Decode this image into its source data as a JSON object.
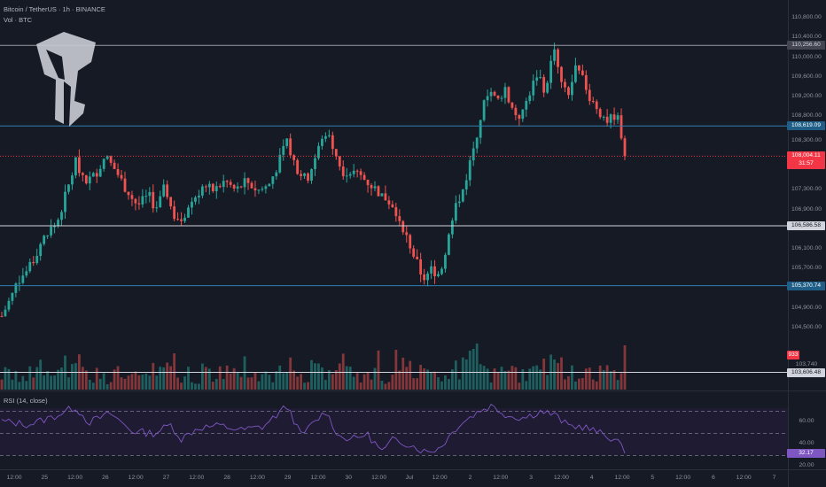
{
  "header": {
    "symbol_line": "Bitcoin / TetherUS · 1h · BINANCE",
    "volume_line": "Vol · BTC",
    "rsi_label": "RSI (14, close)"
  },
  "price_axis": {
    "ticks": [
      "110,800.00",
      "110,400.00",
      "110,000.00",
      "109,600.00",
      "109,200.00",
      "108,800.00",
      "108,300.00",
      "107,300.00",
      "106,900.00",
      "106,100.00",
      "105,700.00",
      "104,900.00",
      "104,500.00",
      "103,740"
    ]
  },
  "levels": [
    {
      "price": 110256.6,
      "label": "110,256.60",
      "color": "#9598a1",
      "label_bg": "#434651",
      "label_fg": "#d1d4dc"
    },
    {
      "price": 108619.09,
      "label": "108,619.09",
      "color": "#2f7fb0",
      "label_bg": "#1f5f87",
      "label_fg": "#ffffff"
    },
    {
      "price": 106586.58,
      "label": "106,586.58",
      "color": "#d1d4dc",
      "label_bg": "#d1d4dc",
      "label_fg": "#131722"
    },
    {
      "price": 105370.74,
      "label": "105,370.74",
      "color": "#2f7fb0",
      "label_bg": "#1f5f87",
      "label_fg": "#ffffff"
    },
    {
      "price": 103606.48,
      "label": "103,606.48",
      "color": "#d1d4dc",
      "label_bg": "#d1d4dc",
      "label_fg": "#131722"
    }
  ],
  "current_price": {
    "price": 108004.11,
    "label": "108,004.11",
    "countdown": "31:57",
    "color": "#f23645"
  },
  "volume_badge": {
    "label": "933",
    "color": "#f23645"
  },
  "rsi": {
    "ticks": [
      "60.00",
      "40.00",
      "20.00"
    ],
    "value_label": "32.17",
    "upper": 70,
    "lower": 30,
    "mid": 50,
    "line_color": "#7e57c2"
  },
  "time_axis": {
    "ticks": [
      "12:00",
      "25",
      "12:00",
      "26",
      "12:00",
      "27",
      "12:00",
      "28",
      "12:00",
      "29",
      "12:00",
      "30",
      "12:00",
      "Jul",
      "12:00",
      "2",
      "12:00",
      "3",
      "12:00",
      "4",
      "12:00",
      "5",
      "12:00",
      "6",
      "12:00",
      "7"
    ]
  },
  "colors": {
    "up": "#26a69a",
    "down": "#ef5350",
    "background": "#161a25"
  },
  "logo": {
    "icon": "trading-brand-helmet-icon"
  },
  "chart_data": {
    "type": "candlestick",
    "symbol": "BTCUSDT",
    "interval": "1h",
    "ylim": [
      103400,
      111000
    ],
    "rsi_ylim": [
      20,
      80
    ],
    "close_path": [
      {
        "t": 0.0,
        "p": 104750
      },
      {
        "t": 2.0,
        "p": 105200
      },
      {
        "t": 3.0,
        "p": 105500
      },
      {
        "t": 5.0,
        "p": 105700
      },
      {
        "t": 7.0,
        "p": 106200
      },
      {
        "t": 8.5,
        "p": 106500
      },
      {
        "t": 10.0,
        "p": 106600
      },
      {
        "t": 12.0,
        "p": 107300
      },
      {
        "t": 13.5,
        "p": 107900
      },
      {
        "t": 15.5,
        "p": 107500
      },
      {
        "t": 17.0,
        "p": 107600
      },
      {
        "t": 19.0,
        "p": 108000
      },
      {
        "t": 21.0,
        "p": 107700
      },
      {
        "t": 23.0,
        "p": 107300
      },
      {
        "t": 25.0,
        "p": 107000
      },
      {
        "t": 27.0,
        "p": 107200
      },
      {
        "t": 28.5,
        "p": 106900
      },
      {
        "t": 30.0,
        "p": 107400
      },
      {
        "t": 31.5,
        "p": 106800
      },
      {
        "t": 33.0,
        "p": 106700
      },
      {
        "t": 35.0,
        "p": 107100
      },
      {
        "t": 37.0,
        "p": 107400
      },
      {
        "t": 39.0,
        "p": 107300
      },
      {
        "t": 41.0,
        "p": 107500
      },
      {
        "t": 43.0,
        "p": 107300
      },
      {
        "t": 45.0,
        "p": 107500
      },
      {
        "t": 47.0,
        "p": 107300
      },
      {
        "t": 49.0,
        "p": 107400
      },
      {
        "t": 51.0,
        "p": 107900
      },
      {
        "t": 52.5,
        "p": 108300
      },
      {
        "t": 54.0,
        "p": 107800
      },
      {
        "t": 56.0,
        "p": 107500
      },
      {
        "t": 58.0,
        "p": 108100
      },
      {
        "t": 59.5,
        "p": 108500
      },
      {
        "t": 61.0,
        "p": 108200
      },
      {
        "t": 62.5,
        "p": 107700
      },
      {
        "t": 64.0,
        "p": 107700
      },
      {
        "t": 66.0,
        "p": 107600
      },
      {
        "t": 68.0,
        "p": 107400
      },
      {
        "t": 70.0,
        "p": 107200
      },
      {
        "t": 72.0,
        "p": 107000
      },
      {
        "t": 74.0,
        "p": 106500
      },
      {
        "t": 76.0,
        "p": 105900
      },
      {
        "t": 77.5,
        "p": 105500
      },
      {
        "t": 79.0,
        "p": 105700
      },
      {
        "t": 80.5,
        "p": 105600
      },
      {
        "t": 82.0,
        "p": 106300
      },
      {
        "t": 83.5,
        "p": 107000
      },
      {
        "t": 85.0,
        "p": 107400
      },
      {
        "t": 86.5,
        "p": 108100
      },
      {
        "t": 88.0,
        "p": 108800
      },
      {
        "t": 89.5,
        "p": 109400
      },
      {
        "t": 91.0,
        "p": 109100
      },
      {
        "t": 92.5,
        "p": 109400
      },
      {
        "t": 94.0,
        "p": 108900
      },
      {
        "t": 95.5,
        "p": 108800
      },
      {
        "t": 97.0,
        "p": 109300
      },
      {
        "t": 98.5,
        "p": 109700
      },
      {
        "t": 100.0,
        "p": 109300
      },
      {
        "t": 101.5,
        "p": 110300
      },
      {
        "t": 102.5,
        "p": 109600
      },
      {
        "t": 104.0,
        "p": 109200
      },
      {
        "t": 105.5,
        "p": 109800
      },
      {
        "t": 107.0,
        "p": 109500
      },
      {
        "t": 108.5,
        "p": 109100
      },
      {
        "t": 110.0,
        "p": 108900
      },
      {
        "t": 111.5,
        "p": 108700
      },
      {
        "t": 112.5,
        "p": 108850
      },
      {
        "t": 113.5,
        "p": 108700
      },
      {
        "t": 114.5,
        "p": 108004
      }
    ],
    "rsi_path": [
      {
        "t": 0,
        "p": 61
      },
      {
        "t": 5,
        "p": 58
      },
      {
        "t": 10,
        "p": 66
      },
      {
        "t": 13.5,
        "p": 74
      },
      {
        "t": 16,
        "p": 60
      },
      {
        "t": 20,
        "p": 68
      },
      {
        "t": 24,
        "p": 52
      },
      {
        "t": 28,
        "p": 50
      },
      {
        "t": 31,
        "p": 58
      },
      {
        "t": 33,
        "p": 45
      },
      {
        "t": 36,
        "p": 55
      },
      {
        "t": 40,
        "p": 57
      },
      {
        "t": 44,
        "p": 53
      },
      {
        "t": 48,
        "p": 56
      },
      {
        "t": 52.5,
        "p": 75
      },
      {
        "t": 55,
        "p": 48
      },
      {
        "t": 59.5,
        "p": 70
      },
      {
        "t": 62,
        "p": 47
      },
      {
        "t": 65,
        "p": 45
      },
      {
        "t": 67,
        "p": 50
      },
      {
        "t": 70,
        "p": 33
      },
      {
        "t": 72,
        "p": 45
      },
      {
        "t": 75,
        "p": 40
      },
      {
        "t": 78,
        "p": 33
      },
      {
        "t": 80.5,
        "p": 37
      },
      {
        "t": 84,
        "p": 58
      },
      {
        "t": 88,
        "p": 71
      },
      {
        "t": 90,
        "p": 75
      },
      {
        "t": 93,
        "p": 66
      },
      {
        "t": 96,
        "p": 64
      },
      {
        "t": 99,
        "p": 70
      },
      {
        "t": 101.5,
        "p": 67
      },
      {
        "t": 104,
        "p": 57
      },
      {
        "t": 107,
        "p": 56
      },
      {
        "t": 110,
        "p": 50
      },
      {
        "t": 113,
        "p": 44
      },
      {
        "t": 114.5,
        "p": 32.17
      }
    ],
    "time_ticks": [
      "12:00",
      "25",
      "12:00",
      "26",
      "12:00",
      "27",
      "12:00",
      "28",
      "12:00",
      "29",
      "12:00",
      "30",
      "12:00",
      "Jul",
      "12:00",
      "2",
      "12:00",
      "3",
      "12:00",
      "4",
      "12:00",
      "5",
      "12:00",
      "6",
      "12:00",
      "7"
    ]
  }
}
